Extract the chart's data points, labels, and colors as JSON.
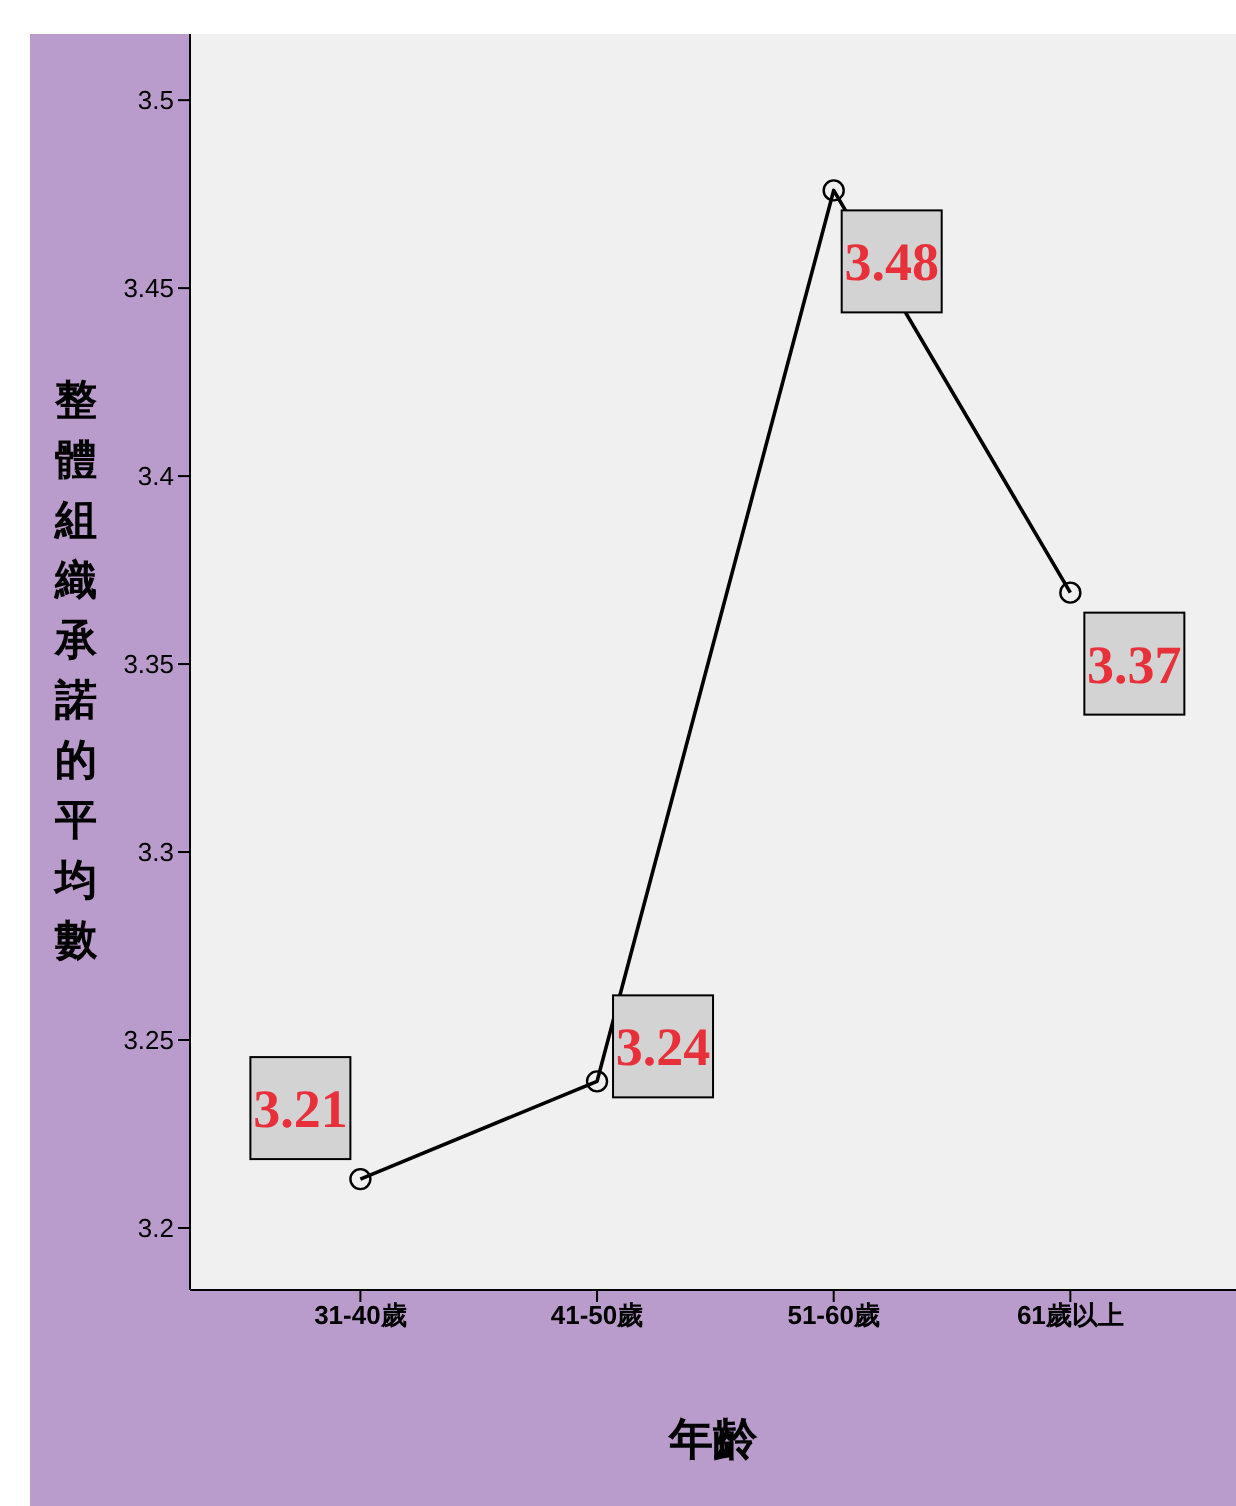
{
  "chart_data": {
    "type": "line",
    "xlabel": "年齡",
    "ylabel": "整體組織承諾的平均數",
    "categories": [
      "31-40歲",
      "41-50歲",
      "51-60歲",
      "61歲以上"
    ],
    "series": [
      {
        "color": "#000000",
        "values": [
          3.213,
          3.239,
          3.476,
          3.369
        ],
        "value_labels": [
          "3.21",
          "3.24",
          "3.48",
          "3.37"
        ]
      }
    ],
    "ylim": [
      3.1835,
      3.5176
    ],
    "yticks": [
      3.2,
      3.25,
      3.3,
      3.35,
      3.4,
      3.45,
      3.5
    ],
    "marker": "circle",
    "line_style": "solid"
  }
}
